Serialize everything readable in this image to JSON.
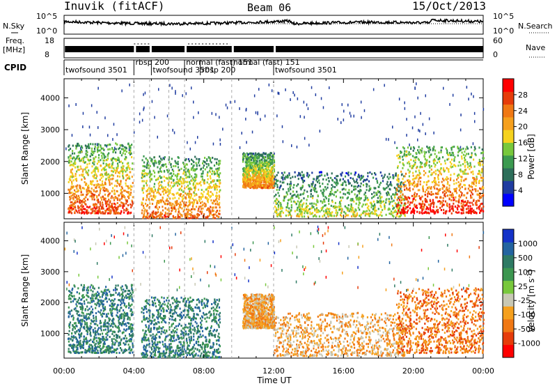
{
  "header": {
    "station": "Inuvik (fitACF)",
    "beam": "Beam 06",
    "date": "15/Oct/2013"
  },
  "noise_panel": {
    "left_label": "N.Sky",
    "right_label": "N.Search",
    "left_ticks": [
      "10^5",
      "10^0"
    ],
    "right_ticks": [
      "10^5",
      "10^0"
    ]
  },
  "freq_panel": {
    "left_label_1": "Freq.",
    "left_label_2": "[MHz]",
    "right_label": "Nave",
    "left_ticks": [
      "18",
      "8"
    ],
    "right_ticks": [
      "60",
      "0"
    ]
  },
  "cpid": {
    "label": "CPID",
    "modes": [
      {
        "name": "twofsound 3501",
        "start": 0.0,
        "end": 4.0
      },
      {
        "name": "rbsp 200",
        "start": 4.0,
        "end": 5.0
      },
      {
        "name": "twofsound 3501",
        "start": 5.0,
        "end": 6.9
      },
      {
        "name": "normal (fast) 151",
        "start": 6.9,
        "end": 8.9
      },
      {
        "name": "rbsp 200",
        "start": 7.8,
        "end": 9.6
      },
      {
        "name": "normal (fast) 151",
        "start": 9.6,
        "end": 12.0
      },
      {
        "name": "twofsound 3501",
        "start": 12.0,
        "end": 24.0
      }
    ]
  },
  "x_axis": {
    "title": "Time UT",
    "ticks": [
      "00:00",
      "04:00",
      "08:00",
      "12:00",
      "16:00",
      "20:00",
      "00:00"
    ]
  },
  "power_panel": {
    "ylabel": "Slant Range [km]",
    "yticks": [
      "1000",
      "2000",
      "3000",
      "4000"
    ],
    "cbar_title": "Power [dB]",
    "cbar_ticks": [
      "4",
      "8",
      "12",
      "16",
      "20",
      "24",
      "28"
    ],
    "cbar_colors": [
      "#0000ff",
      "#1f3ca0",
      "#2d6e5a",
      "#3c9a50",
      "#78c83c",
      "#f5d21e",
      "#f5a01e",
      "#f07814",
      "#e63c0a",
      "#ff0000"
    ]
  },
  "velocity_panel": {
    "ylabel": "Slant Range [km]",
    "yticks": [
      "1000",
      "2000",
      "3000",
      "4000"
    ],
    "cbar_title": "Velocity [m s",
    "cbar_title_sup": "-1",
    "cbar_title_end": "]",
    "cbar_ticks": [
      "1000",
      "500",
      "100",
      "25",
      "-25",
      "-100",
      "-500",
      "-1000"
    ],
    "cbar_colors": [
      "#1432c8",
      "#2364a0",
      "#2e7a64",
      "#3c9650",
      "#78c83c",
      "#c8c8b4",
      "#f5a01e",
      "#f07814",
      "#e63c0a",
      "#ff0000"
    ]
  },
  "chart_data": {
    "type": "heatmap",
    "x_range_hours": [
      0,
      24
    ],
    "y_range_km": [
      200,
      4600
    ],
    "note": "scatter of radar returns, summarized by main scatter regions",
    "regions": [
      {
        "t0": 0.2,
        "t1": 3.9,
        "r0": 400,
        "r1": 2600,
        "power": 24
      },
      {
        "t0": 4.4,
        "t1": 8.9,
        "r0": 250,
        "r1": 2200,
        "power": 22
      },
      {
        "t0": 10.2,
        "t1": 12.0,
        "r0": 1200,
        "r1": 2300,
        "power": 20
      },
      {
        "t0": 12.0,
        "t1": 19.5,
        "r0": 300,
        "r1": 1700,
        "power": 14
      },
      {
        "t0": 19.0,
        "t1": 24.0,
        "r0": 400,
        "r1": 2500,
        "power": 26
      }
    ]
  }
}
